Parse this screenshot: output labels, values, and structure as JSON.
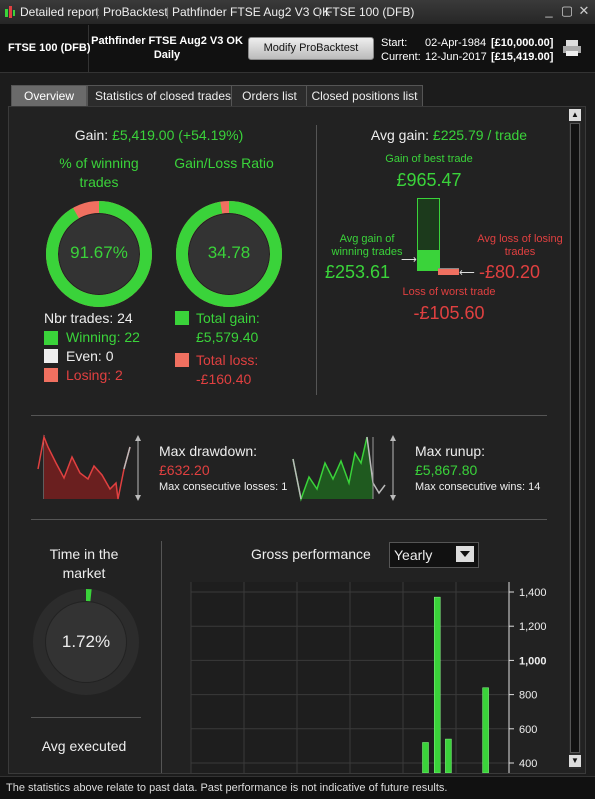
{
  "window": {
    "titles": [
      "Detailed report",
      "ProBacktest",
      "Pathfinder FTSE Aug2 V3 OK",
      "FTSE 100 (DFB)"
    ]
  },
  "info": {
    "instrument": "FTSE 100 (DFB)",
    "system_name": "Pathfinder FTSE Aug2 V3 OK",
    "timeframe": "Daily",
    "modify_button": "Modify ProBacktest",
    "start_label": "Start:",
    "start_date": "02-Apr-1984",
    "start_capital": "[£10,000.00]",
    "current_label": "Current:",
    "current_date": "12-Jun-2017",
    "current_capital": "[£15,419.00]"
  },
  "tabs": [
    "Overview",
    "Statistics of closed trades",
    "Orders list",
    "Closed positions list"
  ],
  "overview": {
    "gain_label": "Gain:",
    "gain_value": "£5,419.00 (+54.19%)",
    "win_title": "% of winning trades",
    "win_pct": "91.67%",
    "win_ratio": 0.9167,
    "gl_title": "Gain/Loss Ratio",
    "gl_ratio": "34.78",
    "gl_fraction": 0.972,
    "nbr_trades": "Nbr trades: 24",
    "winning": "Winning: 22",
    "even": "Even: 0",
    "losing": "Losing: 2",
    "total_gain_label": "Total gain:",
    "total_gain": "£5,579.40",
    "total_loss_label": "Total loss:",
    "total_loss": "-£160.40",
    "avg_gain_label": "Avg gain:",
    "avg_gain_value": "£225.79 / trade",
    "best_trade_label": "Gain of best trade",
    "best_trade": "£965.47",
    "avg_win_label": "Avg gain of winning trades",
    "avg_win": "£253.61",
    "avg_loss_label": "Avg loss of losing trades",
    "avg_loss": "-£80.20",
    "worst_trade_label": "Loss of worst trade",
    "worst_trade": "-£105.60",
    "max_drawdown_label": "Max drawdown:",
    "max_drawdown": "£632.20",
    "max_consec_losses": "Max consecutive losses: 1",
    "max_runup_label": "Max runup:",
    "max_runup": "£5,867.80",
    "max_consec_wins": "Max consecutive wins: 14",
    "time_market_label": "Time in the market",
    "time_market": "1.72%",
    "time_market_fraction": 0.0172,
    "avg_executed_label": "Avg executed",
    "gross_perf_label": "Gross performance",
    "period_select": "Yearly"
  },
  "colors": {
    "green": "#3ad33a",
    "red": "#e04040",
    "pink": "#f07060"
  },
  "chart_data": {
    "type": "bar",
    "title": "Gross performance",
    "y_ticks": [
      "1,400",
      "1,200",
      "1,000",
      "800",
      "600",
      "400"
    ],
    "ylim": [
      400,
      1400
    ],
    "values": [
      520,
      1370,
      540,
      840
    ],
    "x_positions": [
      0.728,
      0.765,
      0.8,
      0.917
    ]
  },
  "status": {
    "text": "The statistics above relate to past data. Past performance is not indicative of future results."
  }
}
